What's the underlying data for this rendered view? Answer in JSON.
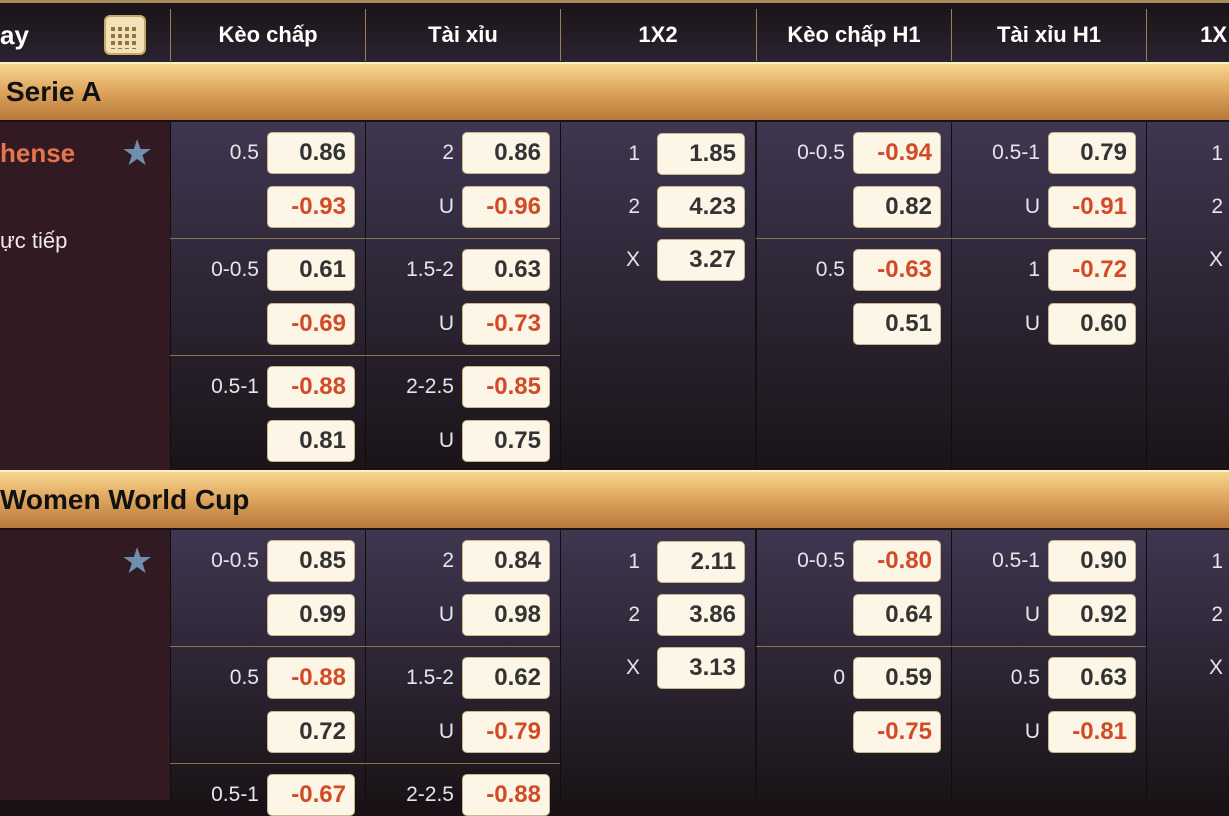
{
  "header": {
    "first": "ay",
    "columns": [
      "Kèo chấp",
      "Tài xỉu",
      "1X2",
      "Kèo chấp H1",
      "Tài xỉu H1",
      "1X"
    ]
  },
  "colors": {
    "negative": "#d24a26",
    "positive": "#333333",
    "team": "#e8744c",
    "star": "#6f8fae"
  },
  "leagues": [
    {
      "name": "Serie A",
      "match": {
        "team": "hense",
        "status": "ực tiếp",
        "favorite_icon": "star-icon",
        "handicap": [
          {
            "line": "0.5",
            "top": "0.86",
            "bot": "-0.93"
          },
          {
            "line": "0-0.5",
            "top": "0.61",
            "bot": "-0.69"
          },
          {
            "line": "0.5-1",
            "top": "-0.88",
            "bot": "0.81"
          }
        ],
        "total": [
          {
            "line": "2",
            "top": "0.86",
            "bline": "U",
            "bot": "-0.96"
          },
          {
            "line": "1.5-2",
            "top": "0.63",
            "bline": "U",
            "bot": "-0.73"
          },
          {
            "line": "2-2.5",
            "top": "-0.85",
            "bline": "U",
            "bot": "0.75"
          }
        ],
        "x12": [
          {
            "label": "1",
            "value": "1.85"
          },
          {
            "label": "2",
            "value": "4.23"
          },
          {
            "label": "X",
            "value": "3.27"
          }
        ],
        "handicap_h1": [
          {
            "line": "0-0.5",
            "top": "-0.94",
            "bot": "0.82"
          },
          {
            "line": "0.5",
            "top": "-0.63",
            "bot": "0.51"
          }
        ],
        "total_h1": [
          {
            "line": "0.5-1",
            "top": "0.79",
            "bline": "U",
            "bot": "-0.91"
          },
          {
            "line": "1",
            "top": "-0.72",
            "bline": "U",
            "bot": "0.60"
          }
        ],
        "x12_h1_labels": [
          "1",
          "2",
          "X"
        ]
      }
    },
    {
      "name": "Women World Cup",
      "match": {
        "team": "",
        "status": "",
        "favorite_icon": "star-icon",
        "handicap": [
          {
            "line": "0-0.5",
            "top": "0.85",
            "bot": "0.99"
          },
          {
            "line": "0.5",
            "top": "-0.88",
            "bot": "0.72"
          },
          {
            "line": "0.5-1",
            "top": "-0.67"
          }
        ],
        "total": [
          {
            "line": "2",
            "top": "0.84",
            "bline": "U",
            "bot": "0.98"
          },
          {
            "line": "1.5-2",
            "top": "0.62",
            "bline": "U",
            "bot": "-0.79"
          },
          {
            "line": "2-2.5",
            "top": "-0.88"
          }
        ],
        "x12": [
          {
            "label": "1",
            "value": "2.11"
          },
          {
            "label": "2",
            "value": "3.86"
          },
          {
            "label": "X",
            "value": "3.13"
          }
        ],
        "handicap_h1": [
          {
            "line": "0-0.5",
            "top": "-0.80",
            "bot": "0.64"
          },
          {
            "line": "0",
            "top": "0.59",
            "bot": "-0.75"
          }
        ],
        "total_h1": [
          {
            "line": "0.5-1",
            "top": "0.90",
            "bline": "U",
            "bot": "0.92"
          },
          {
            "line": "0.5",
            "top": "0.63",
            "bline": "U",
            "bot": "-0.81"
          }
        ],
        "x12_h1_labels": [
          "1",
          "2",
          "X"
        ]
      }
    }
  ]
}
